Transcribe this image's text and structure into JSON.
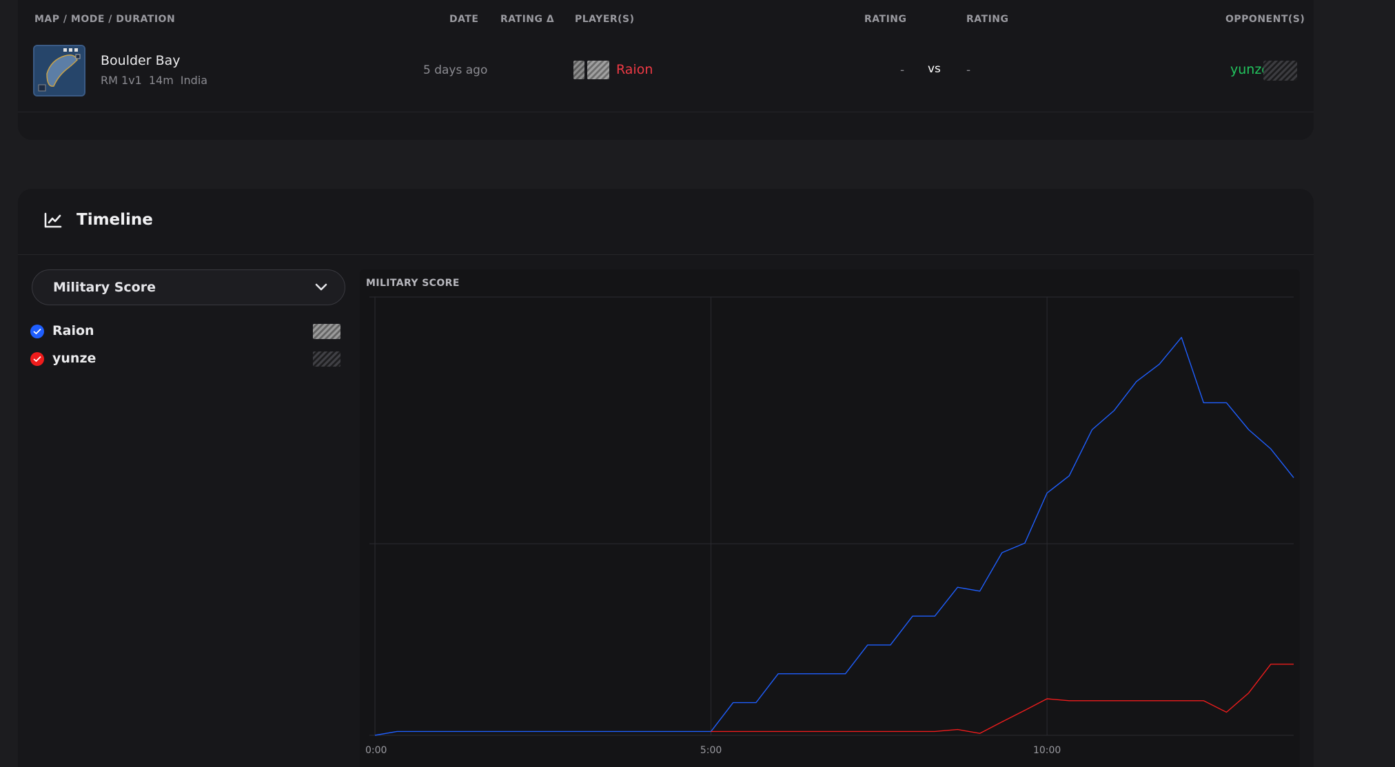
{
  "match_header": {
    "map_mode_duration": "MAP / MODE / DURATION",
    "date": "DATE",
    "rating_delta": "RATING Δ",
    "players": "PLAYER(S)",
    "rating_left": "RATING",
    "rating_right": "RATING",
    "opponents": "OPPONENT(S)"
  },
  "match": {
    "map_name": "Boulder Bay",
    "mode": "RM 1v1",
    "duration": "14m",
    "server": "India",
    "date": "5 days ago",
    "player": "Raion",
    "player_color": "#ef3a45",
    "player_rating": "-",
    "vs": "vs",
    "opponent_rating": "-",
    "opponent": "yunze",
    "opponent_color": "#22c55e"
  },
  "timeline": {
    "title": "Timeline",
    "icon": "line-chart-icon",
    "metric_select": "Military Score",
    "legend": [
      {
        "name": "Raion",
        "color": "#1f5fff",
        "checked": true
      },
      {
        "name": "yunze",
        "color": "#ef1c1c",
        "checked": true
      }
    ]
  },
  "chart_data": {
    "type": "line",
    "title": "MILITARY SCORE",
    "x_ticks": [
      "0:00",
      "5:00",
      "10:00"
    ],
    "xlim": [
      0,
      13.67
    ],
    "ylim": [
      0,
      2.28
    ],
    "grid": true,
    "series": [
      {
        "name": "Raion",
        "color": "#1f5fff",
        "x": [
          0,
          0.33,
          5.0,
          5.33,
          5.67,
          6.0,
          6.33,
          6.67,
          7.0,
          7.33,
          7.67,
          8.0,
          8.33,
          8.67,
          9.0,
          9.33,
          9.67,
          10.0,
          10.33,
          10.67,
          11.0,
          11.33,
          11.67,
          12.0,
          12.33,
          12.67,
          13.0,
          13.33,
          13.67
        ],
        "y": [
          0,
          0.02,
          0.02,
          0.17,
          0.17,
          0.32,
          0.32,
          0.32,
          0.32,
          0.47,
          0.47,
          0.62,
          0.62,
          0.77,
          0.75,
          0.95,
          1.0,
          1.26,
          1.35,
          1.59,
          1.69,
          1.84,
          1.93,
          2.07,
          1.73,
          1.73,
          1.59,
          1.49,
          1.34
        ]
      },
      {
        "name": "yunze",
        "color": "#ef1c1c",
        "x": [
          5.0,
          8.33,
          8.67,
          9.0,
          9.33,
          9.67,
          10.0,
          10.33,
          10.67,
          11.0,
          11.33,
          11.67,
          12.0,
          12.33,
          12.67,
          13.0,
          13.33,
          13.67
        ],
        "y": [
          0.02,
          0.02,
          0.03,
          0.01,
          0.07,
          0.13,
          0.19,
          0.18,
          0.18,
          0.18,
          0.18,
          0.18,
          0.18,
          0.18,
          0.12,
          0.22,
          0.37,
          0.37
        ]
      }
    ]
  }
}
